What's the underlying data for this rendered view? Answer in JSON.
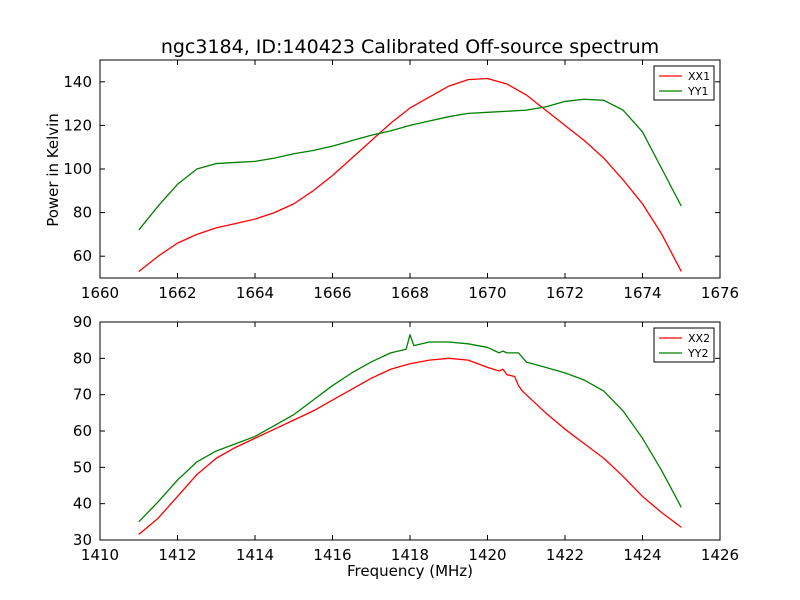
{
  "chart_data": [
    {
      "type": "line",
      "title": "ngc3184, ID:140423 Calibrated Off-source spectrum",
      "xlabel": "",
      "ylabel": "Power in Kelvin",
      "xlim": [
        1660,
        1676
      ],
      "ylim": [
        50,
        150
      ],
      "xticks": [
        1660,
        1662,
        1664,
        1666,
        1668,
        1670,
        1672,
        1674,
        1676
      ],
      "yticks": [
        60,
        80,
        100,
        120,
        140
      ],
      "legend": "top-right",
      "series": [
        {
          "name": "XX1",
          "color": "#ff0000",
          "x": [
            1661.0,
            1661.5,
            1662.0,
            1662.5,
            1663.0,
            1663.5,
            1664.0,
            1664.5,
            1665.0,
            1665.5,
            1666.0,
            1666.5,
            1667.0,
            1667.5,
            1668.0,
            1668.5,
            1669.0,
            1669.5,
            1670.0,
            1670.5,
            1671.0,
            1671.5,
            1672.0,
            1672.5,
            1673.0,
            1673.5,
            1674.0,
            1674.5,
            1675.0
          ],
          "y": [
            53,
            60,
            66,
            70,
            73,
            75,
            77,
            80,
            84,
            90,
            97,
            105,
            113,
            121,
            128,
            133,
            138,
            141,
            141.5,
            139,
            134,
            127,
            120,
            113,
            105,
            95,
            84,
            70,
            53
          ]
        },
        {
          "name": "YY1",
          "color": "#008000",
          "x": [
            1661.0,
            1661.5,
            1662.0,
            1662.5,
            1663.0,
            1663.5,
            1664.0,
            1664.5,
            1665.0,
            1665.5,
            1666.0,
            1666.5,
            1667.0,
            1667.5,
            1668.0,
            1668.5,
            1669.0,
            1669.5,
            1670.0,
            1670.5,
            1671.0,
            1671.5,
            1672.0,
            1672.5,
            1673.0,
            1673.5,
            1674.0,
            1674.5,
            1675.0
          ],
          "y": [
            72,
            83,
            93,
            100,
            102.5,
            103,
            103.5,
            105,
            107,
            108.5,
            110.5,
            113,
            115.5,
            117.5,
            120,
            122,
            124,
            125.5,
            126,
            126.5,
            127,
            128.5,
            131,
            132,
            131.5,
            127,
            117,
            100,
            83
          ]
        }
      ]
    },
    {
      "type": "line",
      "title": "",
      "xlabel": "Frequency (MHz)",
      "ylabel": "",
      "xlim": [
        1410,
        1426
      ],
      "ylim": [
        30,
        90
      ],
      "xticks": [
        1410,
        1412,
        1414,
        1416,
        1418,
        1420,
        1422,
        1424,
        1426
      ],
      "yticks": [
        30,
        40,
        50,
        60,
        70,
        80,
        90
      ],
      "legend": "top-right",
      "series": [
        {
          "name": "XX2",
          "color": "#ff0000",
          "x": [
            1411.0,
            1411.5,
            1412.0,
            1412.5,
            1413.0,
            1413.5,
            1414.0,
            1414.5,
            1415.0,
            1415.5,
            1416.0,
            1416.5,
            1417.0,
            1417.5,
            1418.0,
            1418.5,
            1419.0,
            1419.5,
            1420.0,
            1420.3,
            1420.4,
            1420.5,
            1420.7,
            1420.8,
            1420.9,
            1421.0,
            1421.5,
            1422.0,
            1422.5,
            1423.0,
            1423.5,
            1424.0,
            1424.5,
            1425.0
          ],
          "y": [
            31.5,
            36,
            42,
            48,
            52.5,
            55.5,
            58,
            60.5,
            63,
            65.5,
            68.5,
            71.5,
            74.5,
            77,
            78.5,
            79.5,
            80,
            79.5,
            77.5,
            76.5,
            77,
            75.5,
            75,
            72.5,
            71,
            70,
            65,
            60.5,
            56.5,
            52.5,
            47.5,
            42,
            37.5,
            33.5
          ]
        },
        {
          "name": "YY2",
          "color": "#008000",
          "x": [
            1411.0,
            1411.5,
            1412.0,
            1412.5,
            1413.0,
            1413.5,
            1414.0,
            1414.5,
            1415.0,
            1415.5,
            1416.0,
            1416.5,
            1417.0,
            1417.5,
            1417.9,
            1418.0,
            1418.1,
            1418.5,
            1419.0,
            1419.5,
            1420.0,
            1420.3,
            1420.4,
            1420.5,
            1420.7,
            1420.8,
            1421.0,
            1421.5,
            1422.0,
            1422.5,
            1423.0,
            1423.5,
            1424.0,
            1424.5,
            1425.0
          ],
          "y": [
            35,
            40.5,
            46.5,
            51.5,
            54.5,
            56.5,
            58.5,
            61.5,
            64.5,
            68.5,
            72.5,
            76,
            79,
            81.5,
            82.5,
            86.5,
            83.5,
            84.5,
            84.5,
            84,
            83,
            81.5,
            82,
            81.5,
            81.5,
            81.5,
            79,
            77.5,
            76,
            74,
            71,
            65.5,
            58,
            49,
            39
          ]
        }
      ]
    }
  ]
}
